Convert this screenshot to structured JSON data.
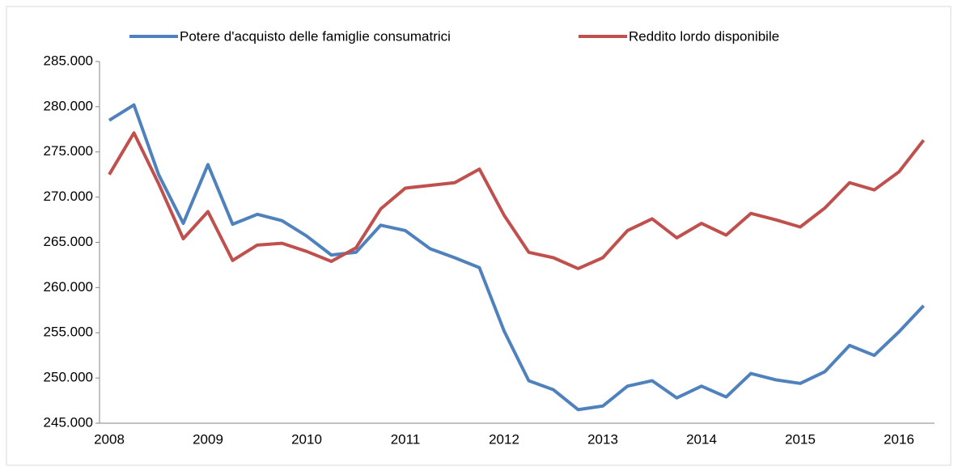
{
  "chart_data": {
    "type": "line",
    "categories": [
      "2008",
      null,
      null,
      null,
      "2009",
      null,
      null,
      null,
      "2010",
      null,
      null,
      null,
      "2011",
      null,
      null,
      null,
      "2012",
      null,
      null,
      null,
      "2013",
      null,
      null,
      null,
      "2014",
      null,
      null,
      null,
      "2015",
      null,
      null,
      null,
      "2016",
      null
    ],
    "series": [
      {
        "name": "Potere d'acquisto delle famiglie consumatrici",
        "color": "#4f81bd",
        "values": [
          278500,
          280200,
          272500,
          267100,
          273600,
          267000,
          268100,
          267400,
          265700,
          263600,
          263900,
          266900,
          266300,
          264300,
          263300,
          262200,
          255200,
          249700,
          248700,
          246500,
          246900,
          249100,
          249700,
          247800,
          249100,
          247900,
          250500,
          249800,
          249400,
          250700,
          253600,
          252500,
          255100,
          258000
        ]
      },
      {
        "name": "Reddito lordo  disponibile",
        "color": "#c0504d",
        "values": [
          272500,
          277100,
          271500,
          265400,
          268400,
          263000,
          264700,
          264900,
          264000,
          262900,
          264400,
          268700,
          271000,
          271300,
          271600,
          273100,
          268000,
          263900,
          263300,
          262100,
          263300,
          266300,
          267600,
          265500,
          267100,
          265800,
          268200,
          267500,
          266700,
          268800,
          271600,
          270800,
          272800,
          276300
        ]
      }
    ],
    "ylim": [
      245000,
      285000
    ],
    "yticks": [
      {
        "value": 245000,
        "label": "245.000"
      },
      {
        "value": 250000,
        "label": "250.000"
      },
      {
        "value": 255000,
        "label": "255.000"
      },
      {
        "value": 260000,
        "label": "260.000"
      },
      {
        "value": 265000,
        "label": "265.000"
      },
      {
        "value": 270000,
        "label": "270.000"
      },
      {
        "value": 275000,
        "label": "275.000"
      },
      {
        "value": 280000,
        "label": "280.000"
      },
      {
        "value": 285000,
        "label": "285.000"
      }
    ],
    "legend": "top"
  }
}
